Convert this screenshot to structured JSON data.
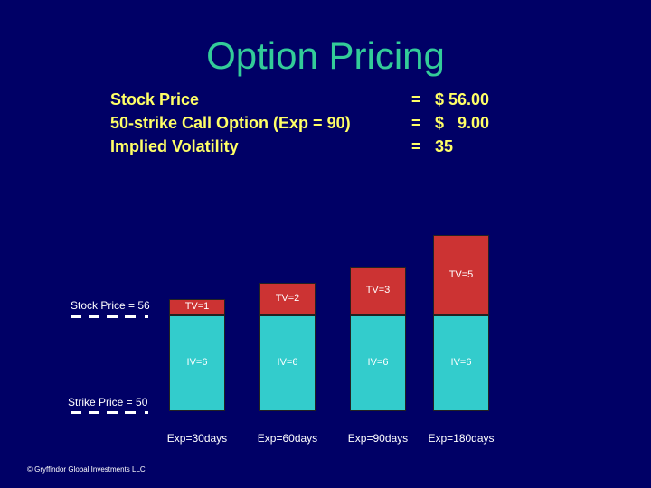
{
  "title": "Option Pricing",
  "info": {
    "rows": [
      {
        "label": "Stock Price",
        "eq": "=",
        "value": "$ 56.00"
      },
      {
        "label": "50-strike Call Option (Exp = 90)",
        "eq": "=",
        "value": "$   9.00"
      },
      {
        "label": "Implied Volatility",
        "eq": "=",
        "value": "35"
      }
    ]
  },
  "levels": {
    "stock_label": "Stock Price = 56",
    "strike_label": "Strike Price = 50"
  },
  "chart_data": {
    "type": "bar",
    "stacked": true,
    "categories": [
      "Exp=30days",
      "Exp=60days",
      "Exp=90days",
      "Exp=180days"
    ],
    "series": [
      {
        "name": "IV",
        "values": [
          6,
          6,
          6,
          6
        ],
        "labels": [
          "IV=6",
          "IV=6",
          "IV=6",
          "IV=6"
        ]
      },
      {
        "name": "TV",
        "values": [
          1,
          2,
          3,
          5
        ],
        "labels": [
          "TV=1",
          "TV=2",
          "TV=3",
          "TV=5"
        ]
      }
    ],
    "stock_price": 56,
    "strike_price": 50
  },
  "copyright": "© Gryffindor Global Investments LLC",
  "colors": {
    "background": "#000066",
    "title": "#33cc99",
    "info": "#ffff66",
    "iv": "#33cccc",
    "tv": "#cc3333"
  }
}
